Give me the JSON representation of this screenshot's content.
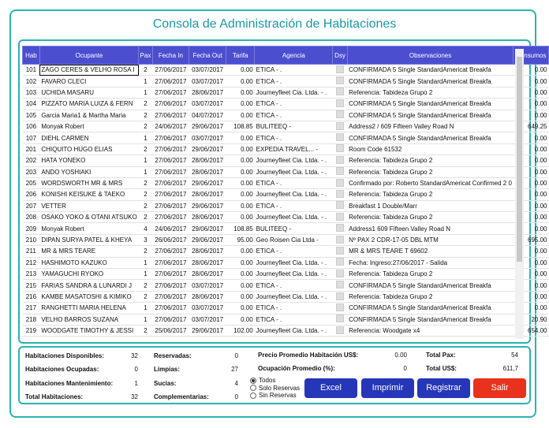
{
  "header": {
    "title": "Consola de Administración de Habitaciones"
  },
  "table": {
    "columns": [
      "Hab",
      "Ocupante",
      "Pax",
      "Fecha In",
      "Fecha Out",
      "Tarifa",
      "Agencia",
      "Dsy",
      "Observaciones",
      "Consumos"
    ],
    "rows": [
      [
        "101",
        "ZAGO CERES & VELHO ROSA I",
        "2",
        "27/06/2017",
        "03/07/2017",
        "0.00",
        "ETICA - .",
        "",
        "CONFIRMADA 5 Single StandardAmericat Breakfa",
        "0.00"
      ],
      [
        "102",
        "FAVARO CLECI",
        "1",
        "27/06/2017",
        "03/07/2017",
        "0.00",
        "ETICA - .",
        "",
        "CONFIRMADA 5 Single StandardAmericat Breakfa",
        "0.00"
      ],
      [
        "103",
        "UCHIDA MASARU",
        "1",
        "27/06/2017",
        "28/06/2017",
        "0.00",
        "Journeyfleet Cia. Ltda. - .",
        "",
        "Referencia: Tabideza Grupo 2",
        "0.00"
      ],
      [
        "104",
        "PIZZATO MARIA LUIZA & FERN",
        "2",
        "27/06/2017",
        "03/07/2017",
        "0.00",
        "ETICA - .",
        "",
        "CONFIRMADA 5 Single StandardAmericat Breakfa",
        "0.00"
      ],
      [
        "105",
        "Garcia Maria1 & Martha Maria",
        "2",
        "27/06/2017",
        "04/07/2017",
        "0.00",
        "ETICA - .",
        "",
        "CONFIRMADA 5 Single StandardAmericat Breakfa",
        "0.00"
      ],
      [
        "106",
        "Monyak Robert",
        "2",
        "24/06/2017",
        "29/06/2017",
        "108.85",
        "BULITEEQ -",
        "",
        "Address2 / 609 Fifteen Valley Road N",
        "649.25"
      ],
      [
        "107",
        "DIEHL CARMEN",
        "1",
        "27/06/2017",
        "03/07/2017",
        "0.00",
        "ETICA - .",
        "",
        "CONFIRMADA 5 Single StandardAmericat Breakfa",
        "0.00"
      ],
      [
        "201",
        "CHIQUITO HUGO ELIAS",
        "2",
        "27/06/2017",
        "29/06/2017",
        "0.00",
        "EXPEDIA TRAVEL... -",
        "",
        "Room Code 61532",
        "0.00"
      ],
      [
        "202",
        "HATA YONEKO",
        "1",
        "27/06/2017",
        "28/06/2017",
        "0.00",
        "Journeyfleet Cia. Ltda. - .",
        "",
        "Referencia: Tabideza Grupo 2",
        "0.00"
      ],
      [
        "203",
        "ANDO YOSHIAKI",
        "1",
        "27/06/2017",
        "28/06/2017",
        "0.00",
        "Journeyfleet Cia. Ltda. - .",
        "",
        "Referencia: Tabideza Grupo 2",
        "0.00"
      ],
      [
        "205",
        "WORDSWORTH MR & MRS",
        "2",
        "27/06/2017",
        "29/06/2017",
        "0.00",
        "ETICA - .",
        "",
        "Confirmado por: Roberto StandardAmericat Confirmed 2 0",
        "0.00"
      ],
      [
        "206",
        "KONISHI KEISUKE & TAEKO",
        "2",
        "27/06/2017",
        "28/06/2017",
        "0.00",
        "Journeyfleet Cia. Ltda. - .",
        "",
        "Referencia: Tabideza Grupo 2",
        "0.00"
      ],
      [
        "207",
        "VETTER",
        "2",
        "27/06/2017",
        "29/06/2017",
        "0.00",
        "ETICA - .",
        "",
        "Breakfast 1 Double/Marr",
        "0.00"
      ],
      [
        "208",
        "OSAKO YOKO & OTANI ATSUKO",
        "2",
        "27/06/2017",
        "28/06/2017",
        "0.00",
        "Journeyfleet Cia. Ltda. - .",
        "",
        "Referencia: Tabideza Grupo 2",
        "0.00"
      ],
      [
        "209",
        "Monyak Robert",
        "4",
        "24/06/2017",
        "29/06/2017",
        "108.85",
        "BULITEEQ -",
        "",
        "Address1 609 Fifteen Valley Road N",
        "0.00"
      ],
      [
        "210",
        "DIPAN SURYA PATEL & KHEYA",
        "3",
        "26/06/2017",
        "29/06/2017",
        "95.00",
        "Geo Roisen Cia Ltda -",
        "",
        "Nº PAX 2 CDR-17-05 DBL MTM",
        "695.00"
      ],
      [
        "211",
        "MR & MRS TEARE",
        "2",
        "27/06/2017",
        "28/06/2017",
        "0.00",
        "ETICA - .",
        "",
        "MR & MRS TEARE T 69602",
        "0.00"
      ],
      [
        "212",
        "HASHIMOTO KAZUKO",
        "1",
        "27/06/2017",
        "28/06/2017",
        "0.00",
        "Journeyfleet Cia. Ltda. - .",
        "",
        "Fecha: Ingreso:27/06/2017 - Salida",
        "0.00"
      ],
      [
        "213",
        "YAMAGUCHI RYOKO",
        "1",
        "27/06/2017",
        "28/06/2017",
        "0.00",
        "Journeyfleet Cia. Ltda. - .",
        "",
        "Referencia: Tabideza Grupo 2",
        "0.00"
      ],
      [
        "215",
        "FARIAS SANDRA & LUNARDI J",
        "2",
        "27/06/2017",
        "03/07/2017",
        "0.00",
        "ETICA - .",
        "",
        "CONFIRMADA 5 Single StandardAmericat Breakfa",
        "0.00"
      ],
      [
        "216",
        "KAMBE MASATOSHI & KIMIKO",
        "2",
        "27/06/2017",
        "28/06/2017",
        "0.00",
        "Journeyfleet Cia. Ltda. - .",
        "",
        "Referencia: Tabideza Grupo 2",
        "0.00"
      ],
      [
        "217",
        "RANGHETTI MARIA HELENA",
        "1",
        "27/06/2017",
        "03/07/2017",
        "0.00",
        "ETICA - .",
        "",
        "CONFIRMADA 5 Single StandardAmericat Breakfa",
        "0.00"
      ],
      [
        "218",
        "VELHO BARROS SUZANA",
        "1",
        "27/06/2017",
        "03/07/2017",
        "0.00",
        "ETICA - .",
        "",
        "CONFIRMADA 5 Single StandardAmericat Breakfa",
        "20.90"
      ],
      [
        "219",
        "WOODGATE TIMOTHY & JESSI",
        "2",
        "25/06/2017",
        "29/06/2017",
        "102.00",
        "Journeyfleet Cia. Ltda. - .",
        "",
        "Referencia: Woodgate x4",
        "654.00"
      ]
    ]
  },
  "summary": {
    "groups": [
      [
        {
          "label": "Habitaciones Disponibles:",
          "value": "32"
        },
        {
          "label": "Habitaciones Ocupadas:",
          "value": "0"
        },
        {
          "label": "Habitaciones Mantenimiento:",
          "value": "1"
        },
        {
          "label": "Total Habitaciones:",
          "value": "32"
        }
      ],
      [
        {
          "label": "Reservadas:",
          "value": "0"
        },
        {
          "label": "Limpias:",
          "value": "27"
        },
        {
          "label": "Sucias:",
          "value": "4"
        },
        {
          "label": "Complementarias:",
          "value": "0"
        }
      ],
      [
        {
          "label": "Precio Promedio Habitación US$:",
          "value": "0.00"
        },
        {
          "label": "Ocupación Promedio (%):",
          "value": "0"
        }
      ],
      [
        {
          "label": "Total Pax:",
          "value": "54"
        },
        {
          "label": "Total US$:",
          "value": "611,7"
        }
      ]
    ]
  },
  "filter": {
    "options": [
      "Todos",
      "Solo Reservas",
      "Sin Reservas"
    ]
  },
  "buttons": [
    "Excel",
    "Imprimir",
    "Registrar",
    "Salir"
  ]
}
